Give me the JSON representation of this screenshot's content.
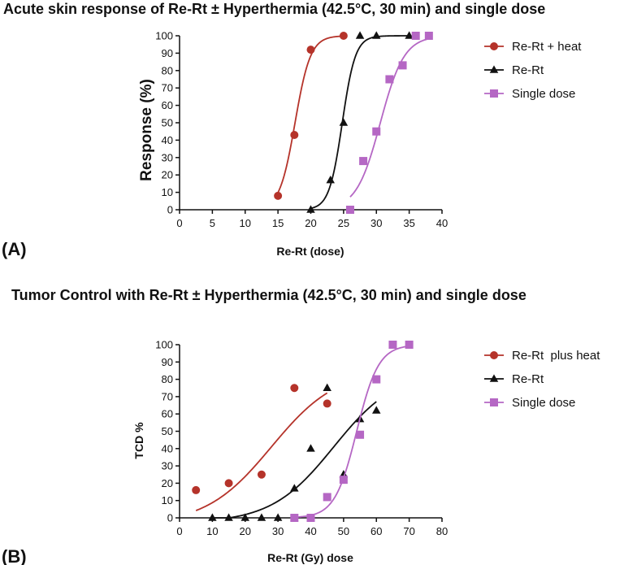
{
  "chart_data": [
    {
      "panel_label": "(A)",
      "type": "scatter",
      "title": "Acute skin response of Re-Rt ± Hyperthermia (42.5°C, 30 min) and single dose",
      "xlabel": "Re-Rt (dose)",
      "ylabel": "Response (%)",
      "xlim": [
        0,
        40
      ],
      "ylim": [
        0,
        100
      ],
      "xticks": [
        0,
        5,
        10,
        15,
        20,
        25,
        30,
        35,
        40
      ],
      "yticks": [
        0,
        10,
        20,
        30,
        40,
        50,
        60,
        70,
        80,
        90,
        100
      ],
      "legend_position": "top-right",
      "series": [
        {
          "name": "Re-Rt + heat",
          "marker": "circle",
          "color": "#b5332a",
          "points": [
            [
              15,
              8
            ],
            [
              17.5,
              43
            ],
            [
              20,
              92
            ],
            [
              25,
              100
            ]
          ],
          "fit": {
            "type": "logistic",
            "x_range": [
              15,
              25
            ],
            "midpoint": 17.6,
            "slope": 0.85
          }
        },
        {
          "name": "Re-Rt",
          "marker": "triangle",
          "color": "#111111",
          "points": [
            [
              20,
              0
            ],
            [
              23,
              17
            ],
            [
              25,
              50
            ],
            [
              27.5,
              100
            ],
            [
              30,
              100
            ],
            [
              35,
              100
            ]
          ],
          "fit": {
            "type": "logistic",
            "x_range": [
              20,
              35
            ],
            "midpoint": 24.8,
            "slope": 1.0
          }
        },
        {
          "name": "Single dose",
          "marker": "square",
          "color": "#b567c4",
          "points": [
            [
              26,
              0
            ],
            [
              28,
              28
            ],
            [
              30,
              45
            ],
            [
              32,
              75
            ],
            [
              34,
              83
            ],
            [
              36,
              100
            ],
            [
              38,
              100
            ]
          ],
          "fit": {
            "type": "logistic",
            "x_range": [
              26,
              38
            ],
            "midpoint": 30.6,
            "slope": 0.55
          }
        }
      ]
    },
    {
      "panel_label": "(B)",
      "type": "scatter",
      "title": "Tumor Control with Re-Rt ± Hyperthermia (42.5°C, 30 min) and single dose",
      "xlabel": "Re-Rt (Gy) dose",
      "ylabel": "TCD %",
      "xlim": [
        0,
        80
      ],
      "ylim": [
        0,
        100
      ],
      "xticks": [
        0,
        10,
        20,
        30,
        40,
        50,
        60,
        70,
        80
      ],
      "yticks": [
        0,
        10,
        20,
        30,
        40,
        50,
        60,
        70,
        80,
        90,
        100
      ],
      "legend_position": "top-right",
      "series": [
        {
          "name": "Re-Rt  plus heat",
          "marker": "circle",
          "color": "#b5332a",
          "points": [
            [
              5,
              16
            ],
            [
              15,
              20
            ],
            [
              25,
              25
            ],
            [
              35,
              75
            ],
            [
              45,
              66
            ]
          ],
          "fit": {
            "type": "logistic",
            "x_range": [
              5,
              45
            ],
            "midpoint": 28,
            "slope": 0.1,
            "top": 86,
            "bottom": -4
          }
        },
        {
          "name": "Re-Rt",
          "marker": "triangle",
          "color": "#111111",
          "points": [
            [
              10,
              0
            ],
            [
              15,
              0
            ],
            [
              20,
              0
            ],
            [
              25,
              0
            ],
            [
              30,
              0
            ],
            [
              35,
              17
            ],
            [
              40,
              40
            ],
            [
              45,
              75
            ],
            [
              50,
              25
            ],
            [
              55,
              57
            ],
            [
              60,
              62
            ]
          ],
          "fit": {
            "type": "logistic",
            "x_range": [
              10,
              60
            ],
            "midpoint": 47,
            "slope": 0.105,
            "top": 85,
            "bottom": -3
          }
        },
        {
          "name": "Single dose",
          "marker": "square",
          "color": "#b567c4",
          "points": [
            [
              35,
              0
            ],
            [
              40,
              0
            ],
            [
              45,
              12
            ],
            [
              50,
              22
            ],
            [
              55,
              48
            ],
            [
              60,
              80
            ],
            [
              65,
              100
            ],
            [
              70,
              100
            ]
          ],
          "fit": {
            "type": "logistic",
            "x_range": [
              35,
              70
            ],
            "midpoint": 54,
            "slope": 0.3
          }
        }
      ]
    }
  ]
}
